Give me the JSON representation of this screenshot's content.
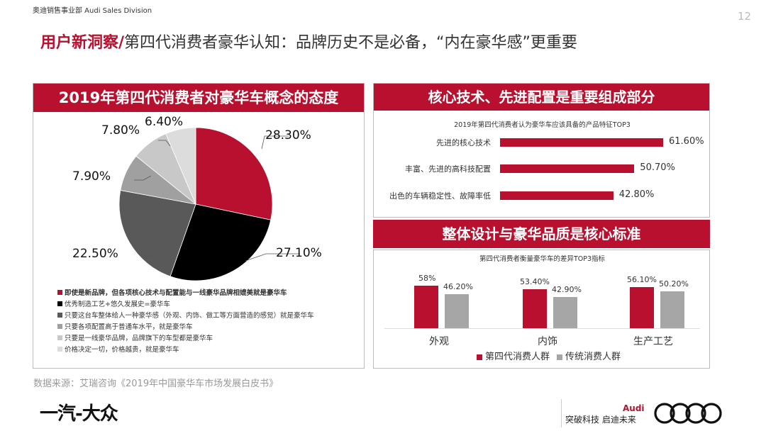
{
  "header": {
    "division": "奥迪销售事业部  Audi Sales Division",
    "page_number": "12",
    "title_accent": "用户新洞察/",
    "title_rest": "第四代消费者豪华认知：品牌历史不是必备，“内在豪华感”更重要"
  },
  "left_panel": {
    "title": "2019年第四代消费者对豪华车概念的态度",
    "legend": [
      {
        "label": "即使是新品牌，但各项核心技术与配置能与一线豪华品牌相媲美就是豪华车",
        "color": "#b8102e",
        "bold": true
      },
      {
        "label": "优秀制造工艺+悠久发展史=豪华车",
        "color": "#000000"
      },
      {
        "label": "只要这台车整体给人一种豪华感（外观、内饰、做工等方面营造的感觉）就是豪华车",
        "color": "#595959"
      },
      {
        "label": "只要各项配置高于普通车水平，就是豪华车",
        "color": "#a0a0a0"
      },
      {
        "label": "只要是一线豪华品牌，品牌旗下的车型都是豪华车",
        "color": "#c8c8c8"
      },
      {
        "label": "价格决定一切，价格越贵，就是豪华车",
        "color": "#dcdcdc"
      }
    ]
  },
  "right_top_panel": {
    "title": "核心技术、先进配置是重要组成部分",
    "chart_title": "2019年第四代消费者认为豪华车应该具备的产品特征TOP3"
  },
  "right_bottom_panel": {
    "title": "整体设计与豪华品质是核心标准",
    "chart_title": "第四代消费者衡量豪华车的差异TOP3指标"
  },
  "chart_data": [
    {
      "type": "pie",
      "title": "2019年第四代消费者对豪华车概念的态度",
      "categories": [
        "即使是新品牌，但各项核心技术与配置能与一线豪华品牌相媲美就是豪华车",
        "优秀制造工艺+悠久发展史=豪华车",
        "只要这台车整体给人一种豪华感（外观、内饰、做工等方面营造的感觉）就是豪华车",
        "只要各项配置高于普通车水平，就是豪华车",
        "只要是一线豪华品牌，品牌旗下的车型都是豪华车",
        "价格决定一切，价格越贵，就是豪华车"
      ],
      "values": [
        28.3,
        27.1,
        22.5,
        7.9,
        7.8,
        6.4
      ],
      "labels": [
        "28.30%",
        "27.10%",
        "22.50%",
        "7.90%",
        "7.80%",
        "6.40%"
      ],
      "colors": [
        "#b8102e",
        "#000000",
        "#595959",
        "#a0a0a0",
        "#c8c8c8",
        "#dcdcdc"
      ],
      "legend_position": "bottom"
    },
    {
      "type": "bar",
      "orientation": "horizontal",
      "title": "2019年第四代消费者认为豪华车应该具备的产品特征TOP3",
      "categories": [
        "先进的核心技术",
        "丰富、先进的高科技配置",
        "出色的车辆稳定性、故障率低"
      ],
      "values": [
        61.6,
        50.7,
        42.8
      ],
      "labels": [
        "61.60%",
        "50.70%",
        "42.80%"
      ],
      "color": "#b8102e",
      "grid": false
    },
    {
      "type": "bar",
      "title": "第四代消费者衡量豪华车的差异TOP3指标",
      "categories": [
        "外观",
        "内饰",
        "生产工艺"
      ],
      "series": [
        {
          "name": "第四代消费人群",
          "values": [
            58,
            53.4,
            56.1
          ],
          "labels": [
            "58%",
            "53.40%",
            "56.10%"
          ],
          "color": "#b8102e"
        },
        {
          "name": "传统消费人群",
          "values": [
            46.2,
            42.9,
            50.2
          ],
          "labels": [
            "46.20%",
            "42.90%",
            "50.20%"
          ],
          "color": "#a6a6a6"
        }
      ],
      "legend_position": "bottom",
      "grid": false
    }
  ],
  "footer": {
    "source": "数据来源：艾瑞咨询《2019年中国豪华车市场发展白皮书》",
    "faw_logo": "一汽-大众",
    "slogan": "突破科技 启迪未来",
    "audi_word": "Audi"
  }
}
